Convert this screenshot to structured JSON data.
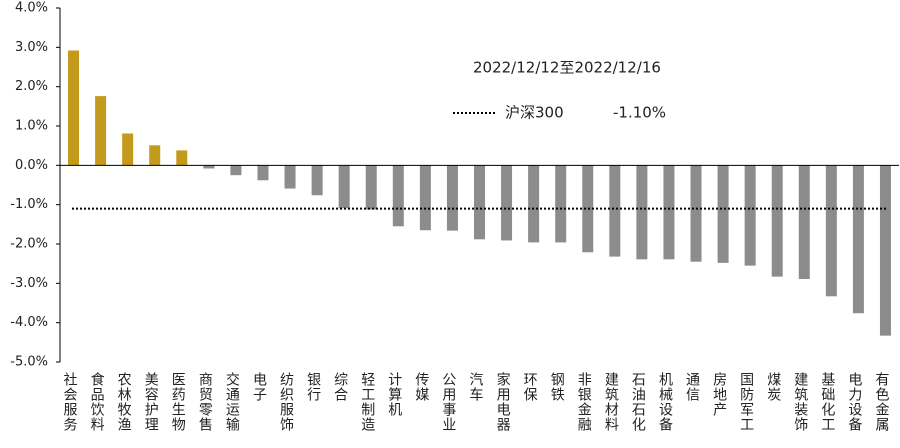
{
  "chart_data": {
    "type": "bar",
    "annotation": "2022/12/12至2022/12/16",
    "categories": [
      "社会服务",
      "食品饮料",
      "农林牧渔",
      "美容护理",
      "医药生物",
      "商贸零售",
      "交通运输",
      "电子",
      "纺织服饰",
      "银行",
      "综合",
      "轻工制造",
      "计算机",
      "传媒",
      "公用事业",
      "汽车",
      "家用电器",
      "环保",
      "钢铁",
      "非银金融",
      "建筑材料",
      "石油石化",
      "机械设备",
      "通信",
      "房地产",
      "国防军工",
      "煤炭",
      "建筑装饰",
      "基础化工",
      "电力设备",
      "有色金属"
    ],
    "values": [
      2.92,
      1.76,
      0.81,
      0.51,
      0.38,
      -0.08,
      -0.25,
      -0.38,
      -0.59,
      -0.76,
      -1.09,
      -1.12,
      -1.55,
      -1.65,
      -1.66,
      -1.88,
      -1.91,
      -1.96,
      -1.96,
      -2.21,
      -2.32,
      -2.39,
      -2.39,
      -2.45,
      -2.48,
      -2.55,
      -2.83,
      -2.89,
      -3.33,
      -3.76,
      -4.33
    ],
    "positive_color": "#c49a1c",
    "negative_color": "#8c8c8c",
    "benchmark": {
      "name": "沪深300",
      "value": -1.1,
      "value_label": "-1.10%",
      "color": "#000000",
      "label_color": "#b08a1a"
    },
    "ylim": [
      -5,
      4
    ],
    "yticks": [
      {
        "value": 4,
        "label": "4.0%"
      },
      {
        "value": 3,
        "label": "3.0%"
      },
      {
        "value": 2,
        "label": "2.0%"
      },
      {
        "value": 1,
        "label": "1.0%"
      },
      {
        "value": 0,
        "label": "0.0%"
      },
      {
        "value": -1,
        "label": "-1.0%"
      },
      {
        "value": -2,
        "label": "-2.0%"
      },
      {
        "value": -3,
        "label": "-3.0%"
      },
      {
        "value": -4,
        "label": "-4.0%"
      },
      {
        "value": -5,
        "label": "-5.0%"
      }
    ],
    "grid": false
  }
}
